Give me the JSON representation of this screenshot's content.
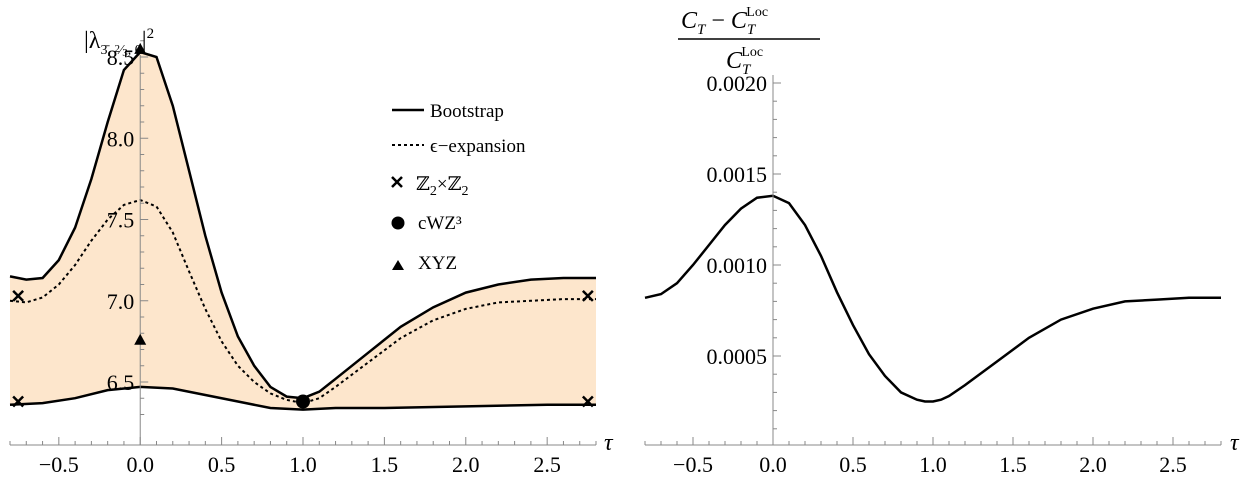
{
  "chart_data": [
    {
      "type": "line",
      "ylabel": "|λ_{3̄, 2/3, 0}|²",
      "xlabel": "τ",
      "xlim": [
        -0.8,
        2.8
      ],
      "ylim": [
        6.28,
        8.6
      ],
      "x_ticks": [
        -0.5,
        0.0,
        0.5,
        1.0,
        1.5,
        2.0,
        2.5
      ],
      "x_tick_labels": [
        "−0.5",
        "0.0",
        "0.5",
        "1.0",
        "1.5",
        "2.0",
        "2.5"
      ],
      "y_ticks": [
        6.5,
        7.0,
        7.5,
        8.0,
        8.5
      ],
      "y_tick_labels": [
        "6.5",
        "7.0",
        "7.5",
        "8.0",
        "8.5"
      ],
      "band_color": "#fde6cc",
      "series": [
        {
          "name": "Bootstrap",
          "style": "solid",
          "x": [
            -0.8,
            -0.7,
            -0.6,
            -0.5,
            -0.4,
            -0.3,
            -0.2,
            -0.1,
            0.0,
            0.1,
            0.2,
            0.3,
            0.4,
            0.5,
            0.6,
            0.7,
            0.8,
            0.9,
            1.0,
            1.1,
            1.2,
            1.4,
            1.6,
            1.8,
            2.0,
            2.2,
            2.4,
            2.6,
            2.8
          ],
          "values": [
            7.15,
            7.13,
            7.14,
            7.25,
            7.45,
            7.75,
            8.1,
            8.42,
            8.53,
            8.5,
            8.2,
            7.8,
            7.4,
            7.05,
            6.78,
            6.6,
            6.47,
            6.41,
            6.4,
            6.44,
            6.52,
            6.68,
            6.84,
            6.96,
            7.05,
            7.1,
            7.13,
            7.14,
            7.14
          ]
        },
        {
          "name": "Bootstrap",
          "style": "solid",
          "x": [
            -0.8,
            -0.6,
            -0.4,
            -0.2,
            0.0,
            0.2,
            0.4,
            0.6,
            0.8,
            1.0,
            1.2,
            1.5,
            2.0,
            2.5,
            2.8
          ],
          "values": [
            6.36,
            6.37,
            6.4,
            6.45,
            6.47,
            6.46,
            6.42,
            6.38,
            6.34,
            6.33,
            6.34,
            6.34,
            6.35,
            6.36,
            6.36
          ]
        },
        {
          "name": "ϵ−expansion",
          "style": "dotted",
          "x": [
            -0.8,
            -0.7,
            -0.6,
            -0.5,
            -0.4,
            -0.3,
            -0.2,
            -0.1,
            0.0,
            0.1,
            0.2,
            0.3,
            0.4,
            0.5,
            0.6,
            0.7,
            0.8,
            0.9,
            1.0,
            1.1,
            1.2,
            1.4,
            1.6,
            1.8,
            2.0,
            2.2,
            2.4,
            2.6,
            2.8
          ],
          "values": [
            7.0,
            6.99,
            7.02,
            7.1,
            7.22,
            7.37,
            7.5,
            7.59,
            7.62,
            7.58,
            7.42,
            7.18,
            6.95,
            6.75,
            6.6,
            6.5,
            6.43,
            6.39,
            6.37,
            6.4,
            6.47,
            6.62,
            6.77,
            6.88,
            6.95,
            6.99,
            7.0,
            7.01,
            7.01
          ]
        }
      ],
      "points": [
        {
          "name": "ℤ2×ℤ2",
          "marker": "cross",
          "x": [
            -0.75,
            -0.75,
            2.75,
            2.75
          ],
          "y": [
            7.03,
            6.38,
            7.03,
            6.38
          ]
        },
        {
          "name": "cWZ³",
          "marker": "circle",
          "x": [
            1.0
          ],
          "y": [
            6.38
          ]
        },
        {
          "name": "XYZ",
          "marker": "triangle",
          "x": [
            0.0,
            0.0
          ],
          "y": [
            8.55,
            6.76
          ]
        }
      ],
      "legend": {
        "placement": "top-center",
        "entries": [
          {
            "label": "Bootstrap",
            "marker": "solid"
          },
          {
            "label": "ϵ−expansion",
            "marker": "dotted"
          },
          {
            "label": "ℤ2×ℤ2",
            "marker": "cross"
          },
          {
            "label": "cWZ³",
            "marker": "circle"
          },
          {
            "label": "XYZ",
            "marker": "triangle"
          }
        ]
      }
    },
    {
      "type": "line",
      "ylabel": "(C_T − C_T^Loc) / C_T^Loc",
      "xlabel": "τ",
      "xlim": [
        -0.8,
        2.8
      ],
      "ylim": [
        0.0001,
        0.002
      ],
      "x_ticks": [
        -0.5,
        0.0,
        0.5,
        1.0,
        1.5,
        2.0,
        2.5
      ],
      "x_tick_labels": [
        "−0.5",
        "0.0",
        "0.5",
        "1.0",
        "1.5",
        "2.0",
        "2.5"
      ],
      "y_ticks": [
        0.0005,
        0.001,
        0.0015,
        0.002
      ],
      "y_tick_labels": [
        "0.0005",
        "0.0010",
        "0.0015",
        "0.0020"
      ],
      "series": [
        {
          "style": "solid",
          "x": [
            -0.8,
            -0.7,
            -0.6,
            -0.5,
            -0.4,
            -0.3,
            -0.2,
            -0.1,
            0.0,
            0.1,
            0.2,
            0.3,
            0.4,
            0.5,
            0.6,
            0.7,
            0.8,
            0.9,
            0.95,
            1.0,
            1.05,
            1.1,
            1.2,
            1.4,
            1.6,
            1.8,
            2.0,
            2.2,
            2.4,
            2.6,
            2.8
          ],
          "values": [
            0.00082,
            0.00084,
            0.0009,
            0.001,
            0.00111,
            0.00122,
            0.00131,
            0.00137,
            0.00138,
            0.00134,
            0.00122,
            0.00105,
            0.00085,
            0.00067,
            0.00051,
            0.00039,
            0.0003,
            0.00026,
            0.00025,
            0.00025,
            0.00026,
            0.00028,
            0.00034,
            0.00047,
            0.0006,
            0.0007,
            0.00076,
            0.0008,
            0.00081,
            0.00082,
            0.00082
          ]
        }
      ]
    }
  ]
}
